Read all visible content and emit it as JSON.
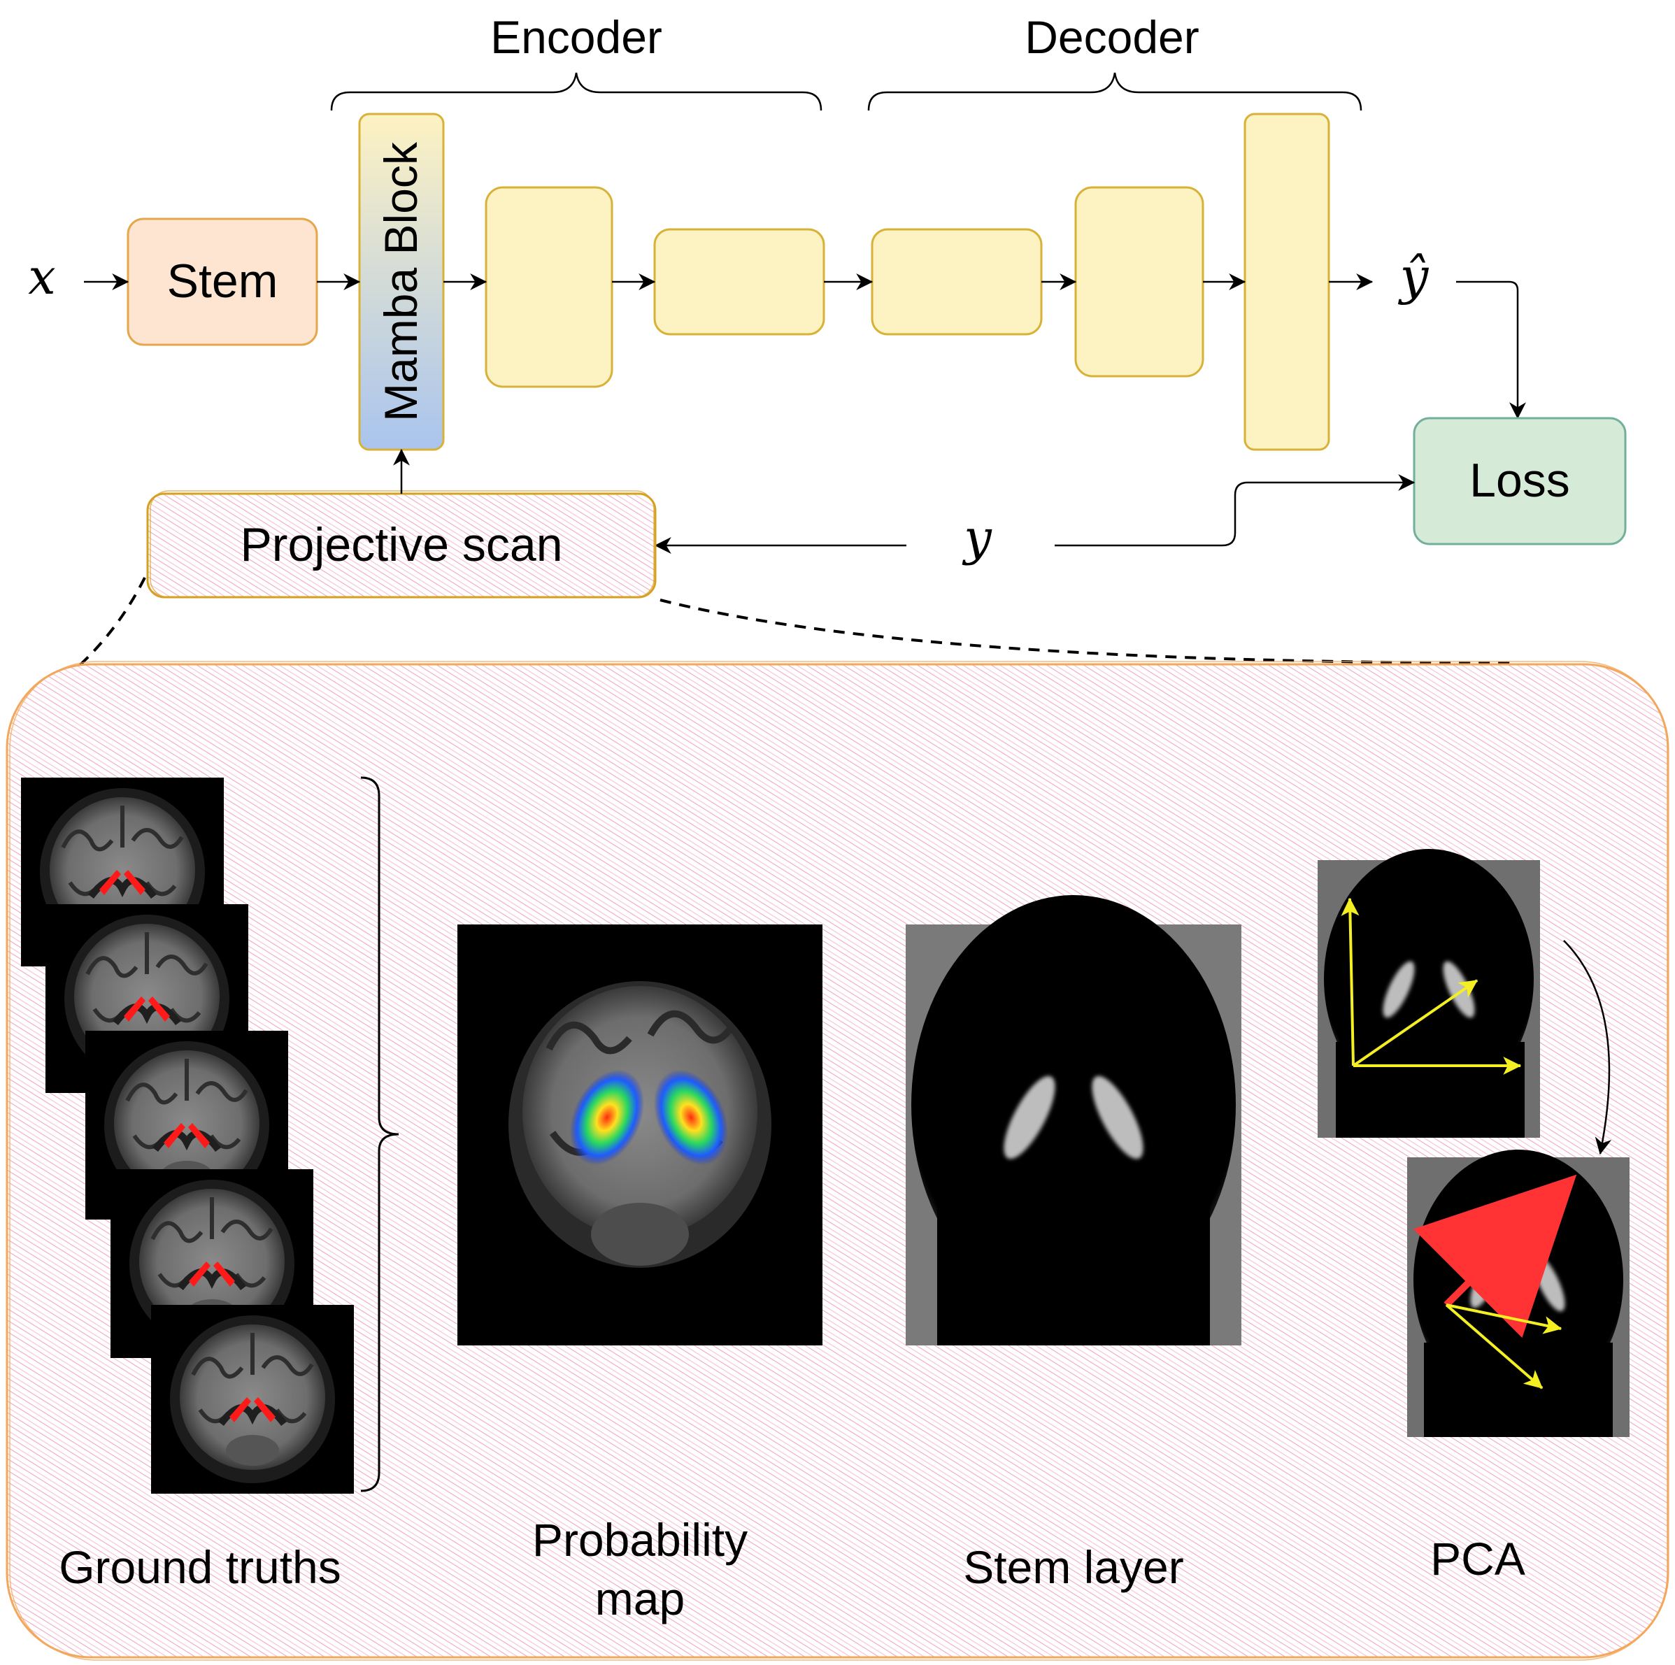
{
  "diagram": {
    "encoder_label": "Encoder",
    "decoder_label": "Decoder",
    "input_symbol": "x",
    "output_symbol": "ŷ",
    "target_symbol": "y",
    "stem_label": "Stem",
    "mamba_block_label": "Mamba Block",
    "loss_label": "Loss",
    "projective_scan_label": "Projective scan"
  },
  "detail_panel": {
    "ground_truths_label": "Ground truths",
    "probability_map_label_line1": "Probability",
    "probability_map_label_line2": "map",
    "stem_layer_label": "Stem layer",
    "pca_label": "PCA"
  },
  "colors": {
    "stem_fill": "#fde5d2",
    "stem_stroke": "#e6a64a",
    "block_fill": "#fdf2c2",
    "block_stroke": "#d8b238",
    "mamba_top": "#fdf2c2",
    "mamba_bottom": "#a9c4ee",
    "loss_fill": "#d6ead8",
    "loss_stroke": "#72b09a",
    "hatch": "#f3a5c0",
    "panel_stroke": "#f2a85c",
    "segmentation_red": "#ff2020",
    "pca_axis_yellow": "#f4ef22",
    "pca_arrow_red": "#ff3333"
  }
}
